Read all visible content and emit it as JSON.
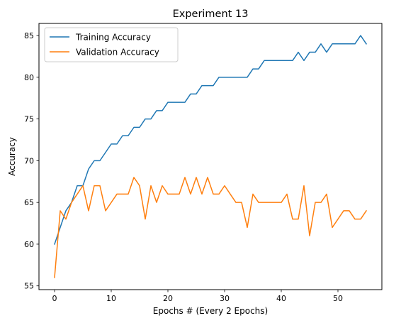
{
  "chart_data": {
    "type": "line",
    "title": "Experiment 13",
    "xlabel": "Epochs # (Every 2 Epochs)",
    "ylabel": "Accuracy",
    "xlim": [
      -2.75,
      57.75
    ],
    "ylim": [
      54.55,
      86.45
    ],
    "xticks": [
      0,
      10,
      20,
      30,
      40,
      50
    ],
    "yticks": [
      55,
      60,
      65,
      70,
      75,
      80,
      85
    ],
    "grid": false,
    "legend_position": "upper-left",
    "series": [
      {
        "name": "Training Accuracy",
        "color": "#1f77b4",
        "values": [
          60,
          62,
          64,
          65,
          67,
          67,
          69,
          70,
          70,
          71,
          72,
          72,
          73,
          73,
          74,
          74,
          75,
          75,
          76,
          76,
          77,
          77,
          77,
          77,
          78,
          78,
          79,
          79,
          79,
          80,
          80,
          80,
          80,
          80,
          80,
          81,
          81,
          82,
          82,
          82,
          82,
          82,
          82,
          83,
          82,
          83,
          83,
          84,
          83,
          84,
          84,
          84,
          84,
          84,
          85,
          84
        ]
      },
      {
        "name": "Validation Accuracy",
        "color": "#ff7f0e",
        "values": [
          56,
          64,
          63,
          65,
          66,
          67,
          64,
          67,
          67,
          64,
          65,
          66,
          66,
          66,
          68,
          67,
          63,
          67,
          65,
          67,
          66,
          66,
          66,
          68,
          66,
          68,
          66,
          68,
          66,
          66,
          67,
          66,
          65,
          65,
          62,
          66,
          65,
          65,
          65,
          65,
          65,
          66,
          63,
          63,
          67,
          61,
          65,
          65,
          66,
          62,
          63,
          64,
          64,
          63,
          63,
          64
        ]
      }
    ]
  }
}
